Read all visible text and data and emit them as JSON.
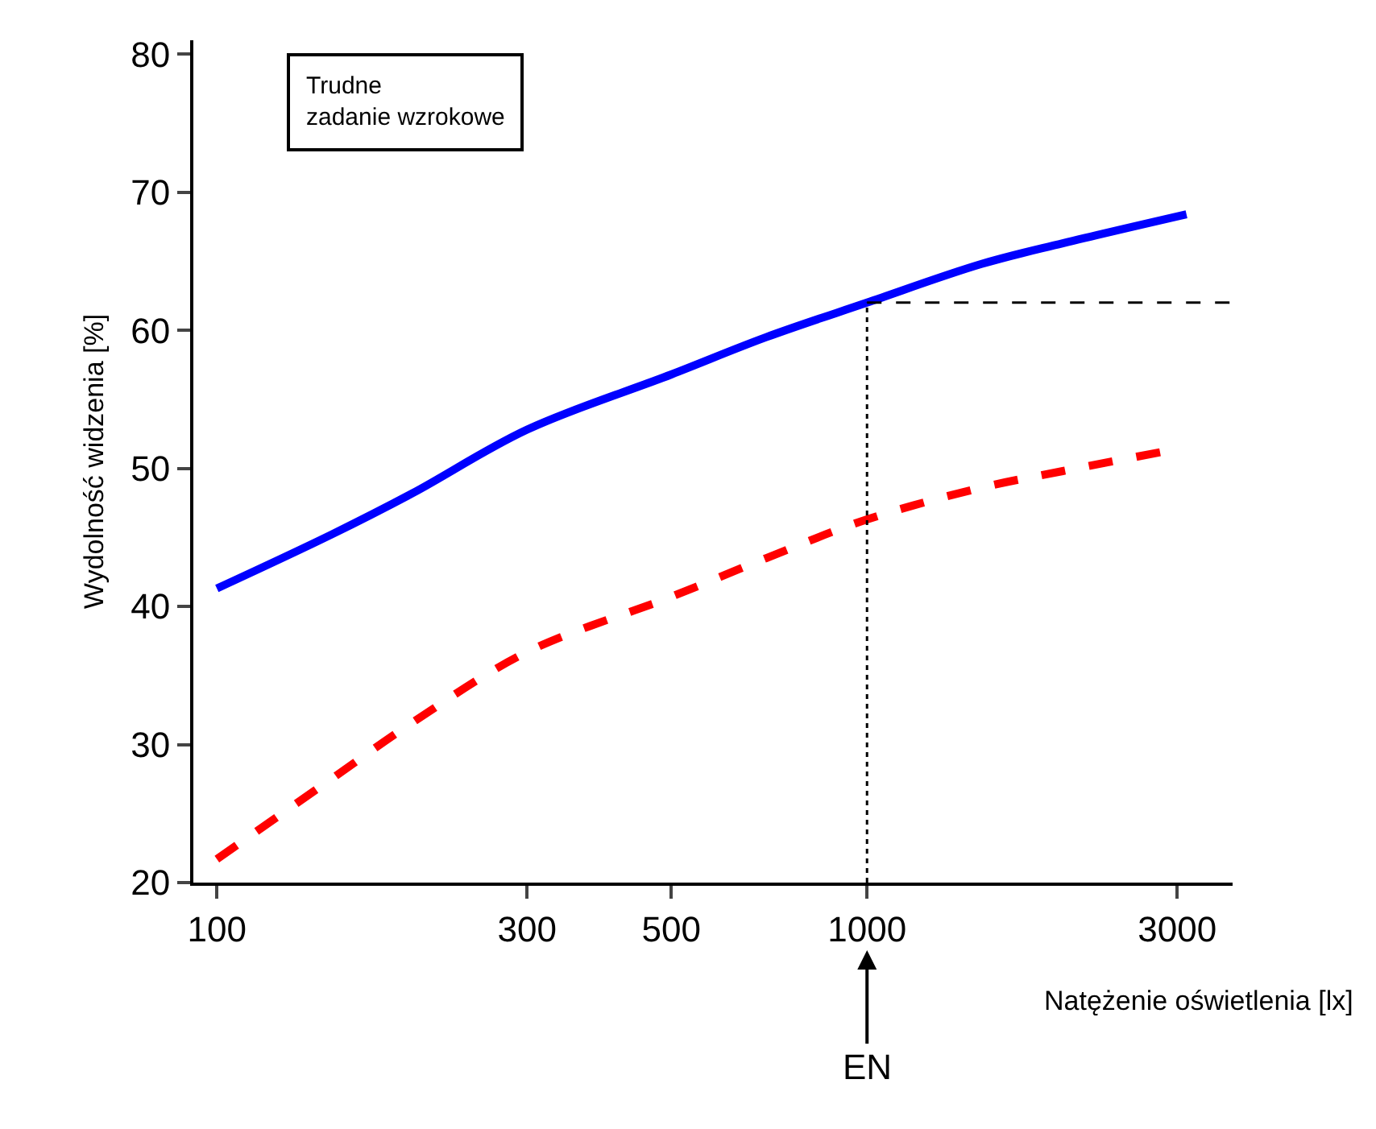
{
  "chart_data": {
    "type": "line",
    "xlabel": "Natężenie oświetlenia [lx]",
    "ylabel": "Wydolność widzenia [%]",
    "annotations": [
      "Trudne\nzadanie wzrokowe"
    ],
    "x": [
      100,
      150,
      200,
      300,
      500,
      700,
      1000,
      1500,
      2000,
      3100
    ],
    "series": [
      {
        "color": "#0000ff",
        "line_style": "solid",
        "values": [
          41.3,
          45.2,
          48.2,
          52.8,
          56.8,
          59.5,
          62,
          64.8,
          66.3,
          68.4
        ]
      },
      {
        "color": "#ff0000",
        "line_style": "dashed",
        "x": [
          100,
          150,
          200,
          300,
          500,
          700,
          1000,
          1500,
          2000,
          2850
        ],
        "values": [
          21.7,
          27.5,
          31.6,
          36.7,
          40.7,
          43.5,
          46.3,
          48.6,
          49.8,
          51.2
        ]
      }
    ],
    "ref_lines": [
      {
        "axis": "x",
        "value": 1000,
        "label": "EN",
        "color": "#000000",
        "line_style": "dotted"
      },
      {
        "axis": "y",
        "value": 62,
        "color": "#000000",
        "line_style": "dashed"
      }
    ],
    "log": "x",
    "xlim": [
      92,
      3650
    ],
    "ylim": [
      20,
      81
    ],
    "xticks": [
      100,
      300,
      500,
      1000,
      3000
    ],
    "yticks": [
      20,
      30,
      40,
      50,
      60,
      70,
      80
    ],
    "marker": "none"
  }
}
